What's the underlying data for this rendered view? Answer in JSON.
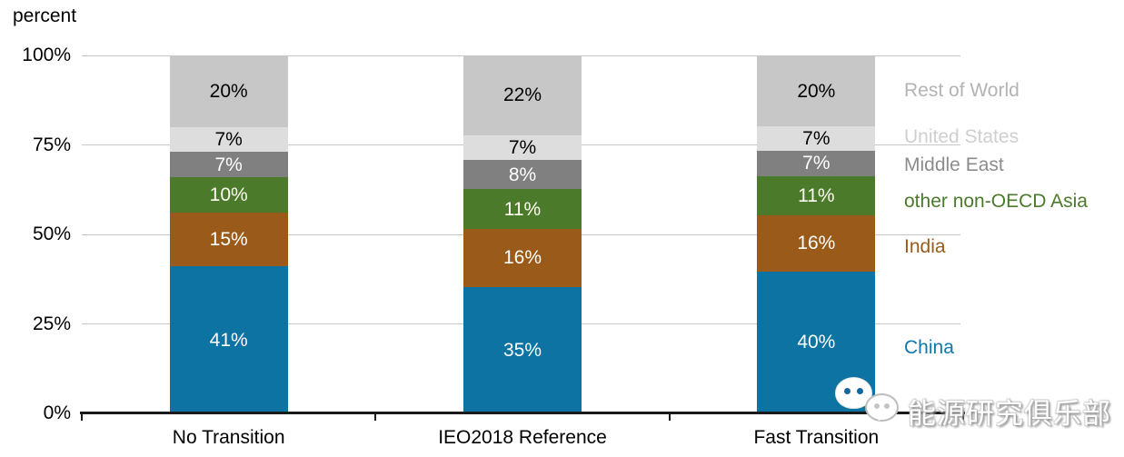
{
  "chart_data": {
    "type": "bar",
    "stacked": true,
    "ylabel": "percent",
    "ylim": [
      0,
      100
    ],
    "grid": true,
    "ytick_values": [
      0,
      25,
      50,
      75,
      100
    ],
    "ytick_labels": [
      "0%",
      "25%",
      "50%",
      "75%",
      "100%"
    ],
    "categories": [
      "No Transition",
      "IEO2018 Reference",
      "Fast Transition"
    ],
    "series": [
      {
        "name": "China",
        "color": "#0C73A2",
        "label_color": "#FFFFFF",
        "values": [
          41,
          35,
          40
        ],
        "data_labels": [
          "41%",
          "35%",
          "40%"
        ]
      },
      {
        "name": "India",
        "color": "#9A5B1A",
        "label_color": "#FFFFFF",
        "values": [
          15,
          16,
          16
        ],
        "data_labels": [
          "15%",
          "16%",
          "16%"
        ]
      },
      {
        "name": "other non-OECD Asia",
        "color": "#4B7A2B",
        "label_color": "#FDFDF2",
        "values": [
          10,
          11,
          11
        ],
        "data_labels": [
          "10%",
          "11%",
          "11%"
        ]
      },
      {
        "name": "Middle East",
        "color": "#808080",
        "label_color": "#FFFFFF",
        "values": [
          7,
          8,
          7
        ],
        "data_labels": [
          "7%",
          "8%",
          "7%"
        ]
      },
      {
        "name": "United States",
        "color": "#DDDDDD",
        "label_color": "#000000",
        "values": [
          7,
          7,
          7
        ],
        "data_labels": [
          "7%",
          "7%",
          "7%"
        ]
      },
      {
        "name": "Rest of World",
        "color": "#C7C7C7",
        "label_color": "#000000",
        "values": [
          20,
          22,
          20
        ],
        "data_labels": [
          "20%",
          "22%",
          "20%"
        ]
      }
    ],
    "legend_position": "right",
    "legend": [
      {
        "name": "Rest of World",
        "color": "#B3B3B3"
      },
      {
        "name": "United States",
        "color": "#CFCFCF"
      },
      {
        "name": "Middle East",
        "color": "#8C8C8C"
      },
      {
        "name": "other non-OECD Asia",
        "color": "#4B7A2B"
      },
      {
        "name": "India",
        "color": "#9A5B1A"
      },
      {
        "name": "China",
        "color": "#0F78AC"
      }
    ]
  },
  "watermark": {
    "text": "能源研究俱乐部",
    "icon": "wechat-chat-bubbles"
  }
}
